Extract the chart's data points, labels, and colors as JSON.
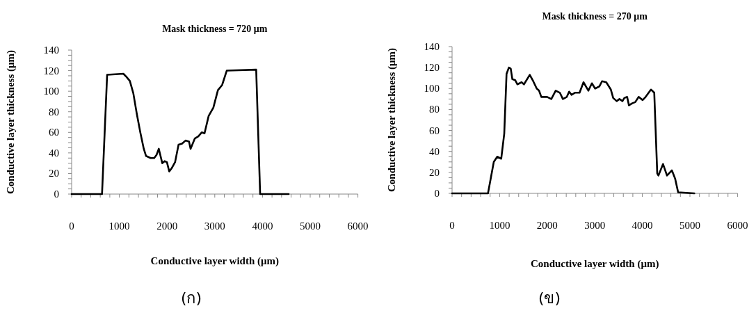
{
  "chart_data": [
    {
      "type": "line",
      "title": "Mask thickness = 720 μm",
      "xlabel": "Conductive layer width (μm)",
      "ylabel": "Conductive layer thickness (μm)",
      "color": "#000000",
      "annotations": [
        "(ก)"
      ],
      "x": [
        0,
        637,
        744,
        1084,
        1147,
        1220,
        1293,
        1366,
        1439,
        1512,
        1560,
        1657,
        1730,
        1779,
        1827,
        1900,
        1949,
        1997,
        2046,
        2095,
        2168,
        2241,
        2314,
        2387,
        2460,
        2493,
        2581,
        2654,
        2727,
        2785,
        2872,
        2970,
        3066,
        3154,
        3251,
        3868,
        3951,
        4549
      ],
      "values": [
        0,
        0,
        116,
        117,
        114,
        110,
        98,
        78,
        60,
        44,
        37,
        35,
        35,
        38,
        44,
        30,
        32,
        31,
        22,
        25,
        31,
        48,
        49,
        52,
        51,
        44,
        54,
        56,
        60,
        59,
        76,
        84,
        101,
        106,
        120,
        121,
        0,
        0
      ],
      "xlim": [
        0,
        6000
      ],
      "ylim": [
        0,
        140
      ],
      "xticks": [
        0,
        {
          "value": 200,
          "label": null
        },
        {
          "value": 400,
          "label": null
        },
        {
          "value": 600,
          "label": null
        },
        {
          "value": 800,
          "label": null
        },
        1000,
        {
          "value": 1200,
          "label": null
        },
        {
          "value": 1400,
          "label": null
        },
        {
          "value": 1600,
          "label": null
        },
        {
          "value": 1800,
          "label": null
        },
        2000,
        {
          "value": 2200,
          "label": null
        },
        {
          "value": 2400,
          "label": null
        },
        {
          "value": 2600,
          "label": null
        },
        {
          "value": 2800,
          "label": null
        },
        3000,
        {
          "value": 3200,
          "label": null
        },
        {
          "value": 3400,
          "label": null
        },
        {
          "value": 3600,
          "label": null
        },
        {
          "value": 3800,
          "label": null
        },
        4000,
        {
          "value": 4200,
          "label": null
        },
        {
          "value": 4400,
          "label": null
        },
        {
          "value": 4600,
          "label": null
        },
        {
          "value": 4800,
          "label": null
        },
        5000,
        {
          "value": 5200,
          "label": null
        },
        {
          "value": 5400,
          "label": null
        },
        {
          "value": 5600,
          "label": null
        },
        {
          "value": 5800,
          "label": null
        },
        6000
      ],
      "yticks": [
        0,
        {
          "value": 5,
          "label": null
        },
        {
          "value": 10,
          "label": null
        },
        {
          "value": 15,
          "label": null
        },
        20,
        {
          "value": 25,
          "label": null
        },
        {
          "value": 30,
          "label": null
        },
        {
          "value": 35,
          "label": null
        },
        40,
        {
          "value": 45,
          "label": null
        },
        {
          "value": 50,
          "label": null
        },
        {
          "value": 55,
          "label": null
        },
        60,
        {
          "value": 65,
          "label": null
        },
        {
          "value": 70,
          "label": null
        },
        {
          "value": 75,
          "label": null
        },
        80,
        {
          "value": 85,
          "label": null
        },
        {
          "value": 90,
          "label": null
        },
        {
          "value": 95,
          "label": null
        },
        100,
        {
          "value": 105,
          "label": null
        },
        {
          "value": 110,
          "label": null
        },
        {
          "value": 115,
          "label": null
        },
        120,
        {
          "value": 125,
          "label": null
        },
        {
          "value": 130,
          "label": null
        },
        {
          "value": 135,
          "label": null
        },
        140
      ]
    },
    {
      "type": "line",
      "title": "Mask thickness = 270 μm",
      "xlabel": "Conductive layer width (μm)",
      "ylabel": "Conductive layer thickness (μm)",
      "color": "#000000",
      "annotations": [
        "(ข)"
      ],
      "x": [
        0,
        755,
        877,
        950,
        1033,
        1097,
        1145,
        1194,
        1233,
        1267,
        1326,
        1374,
        1462,
        1511,
        1633,
        1706,
        1779,
        1828,
        1876,
        1998,
        2086,
        2178,
        2266,
        2329,
        2412,
        2461,
        2510,
        2583,
        2680,
        2763,
        2866,
        2939,
        3007,
        3095,
        3153,
        3241,
        3338,
        3387,
        3460,
        3519,
        3582,
        3621,
        3680,
        3718,
        3791,
        3850,
        3923,
        4006,
        4069,
        4181,
        4250,
        4313,
        4338,
        4435,
        4518,
        4620,
        4689,
        4752,
        5092
      ],
      "values": [
        0,
        0,
        30,
        35,
        33,
        57,
        114,
        120,
        119,
        109,
        108,
        104,
        106,
        104,
        113,
        107,
        100,
        98,
        92,
        92,
        90,
        98,
        96,
        90,
        92,
        97,
        94,
        96,
        96,
        106,
        98,
        105,
        100,
        102,
        107,
        106,
        99,
        91,
        88,
        90,
        88,
        91,
        92,
        84,
        86,
        87,
        92,
        89,
        92,
        99,
        96,
        19,
        17,
        28,
        17,
        22,
        14,
        1,
        0
      ],
      "xlim": [
        0,
        6000
      ],
      "ylim": [
        0,
        140
      ],
      "xticks": [
        0,
        {
          "value": 200,
          "label": null
        },
        {
          "value": 400,
          "label": null
        },
        {
          "value": 600,
          "label": null
        },
        {
          "value": 800,
          "label": null
        },
        1000,
        {
          "value": 1200,
          "label": null
        },
        {
          "value": 1400,
          "label": null
        },
        {
          "value": 1600,
          "label": null
        },
        {
          "value": 1800,
          "label": null
        },
        2000,
        {
          "value": 2200,
          "label": null
        },
        {
          "value": 2400,
          "label": null
        },
        {
          "value": 2600,
          "label": null
        },
        {
          "value": 2800,
          "label": null
        },
        3000,
        {
          "value": 3200,
          "label": null
        },
        {
          "value": 3400,
          "label": null
        },
        {
          "value": 3600,
          "label": null
        },
        {
          "value": 3800,
          "label": null
        },
        4000,
        {
          "value": 4200,
          "label": null
        },
        {
          "value": 4400,
          "label": null
        },
        {
          "value": 4600,
          "label": null
        },
        {
          "value": 4800,
          "label": null
        },
        5000,
        {
          "value": 5200,
          "label": null
        },
        {
          "value": 5400,
          "label": null
        },
        {
          "value": 5600,
          "label": null
        },
        {
          "value": 5800,
          "label": null
        },
        6000
      ],
      "yticks": [
        0,
        {
          "value": 5,
          "label": null
        },
        {
          "value": 10,
          "label": null
        },
        {
          "value": 15,
          "label": null
        },
        20,
        {
          "value": 25,
          "label": null
        },
        {
          "value": 30,
          "label": null
        },
        {
          "value": 35,
          "label": null
        },
        40,
        {
          "value": 45,
          "label": null
        },
        {
          "value": 50,
          "label": null
        },
        {
          "value": 55,
          "label": null
        },
        60,
        {
          "value": 65,
          "label": null
        },
        {
          "value": 70,
          "label": null
        },
        {
          "value": 75,
          "label": null
        },
        80,
        {
          "value": 85,
          "label": null
        },
        {
          "value": 90,
          "label": null
        },
        {
          "value": 95,
          "label": null
        },
        100,
        {
          "value": 105,
          "label": null
        },
        {
          "value": 110,
          "label": null
        },
        {
          "value": 115,
          "label": null
        },
        120,
        {
          "value": 125,
          "label": null
        },
        {
          "value": 130,
          "label": null
        },
        {
          "value": 135,
          "label": null
        },
        140
      ]
    }
  ]
}
